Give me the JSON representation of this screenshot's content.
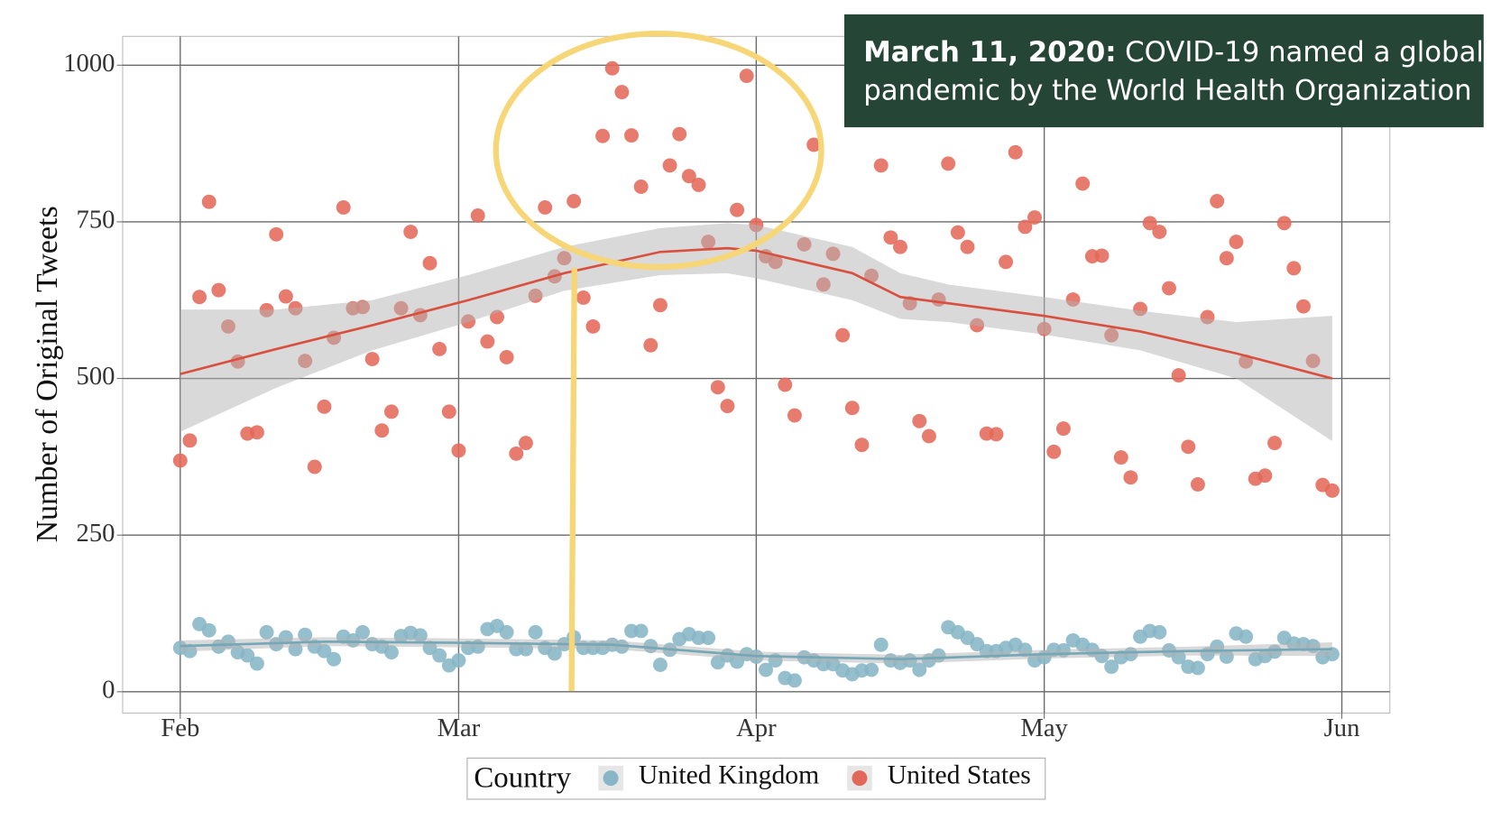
{
  "chart_data": {
    "type": "scatter",
    "y_label": "Number of Original Tweets",
    "legend_title": "Country",
    "legend_position": "bottom",
    "annotation": {
      "date": "March 11, 2020:",
      "lines": [
        "COVID-19 named a global",
        "pandemic by the World Health Organization"
      ]
    },
    "xlim": [
      -6,
      126
    ],
    "ylim": [
      -34,
      1046
    ],
    "xticks": [
      {
        "value": 0,
        "label": "Feb"
      },
      {
        "value": 29,
        "label": "Mar"
      },
      {
        "value": 60,
        "label": "Apr"
      },
      {
        "value": 90,
        "label": "May"
      },
      {
        "value": 121,
        "label": "Jun"
      }
    ],
    "yticks": [
      0,
      250,
      500,
      750,
      1000
    ],
    "grid": true,
    "x": [
      0,
      1,
      2,
      3,
      4,
      5,
      6,
      7,
      8,
      9,
      10,
      11,
      12,
      13,
      14,
      15,
      16,
      17,
      18,
      19,
      20,
      21,
      22,
      23,
      24,
      25,
      26,
      27,
      28,
      29,
      30,
      31,
      32,
      33,
      34,
      35,
      36,
      37,
      38,
      39,
      40,
      41,
      42,
      43,
      44,
      45,
      46,
      47,
      48,
      49,
      50,
      51,
      52,
      53,
      54,
      55,
      56,
      57,
      58,
      59,
      60,
      61,
      62,
      63,
      64,
      65,
      66,
      67,
      68,
      69,
      70,
      71,
      72,
      73,
      74,
      75,
      76,
      77,
      78,
      79,
      80,
      81,
      82,
      83,
      84,
      85,
      86,
      87,
      88,
      89,
      90,
      91,
      92,
      93,
      94,
      95,
      96,
      97,
      98,
      99,
      100,
      101,
      102,
      103,
      104,
      105,
      106,
      107,
      108,
      109,
      110,
      111,
      112,
      113,
      114,
      115,
      116,
      117,
      118,
      119,
      120
    ],
    "series": [
      {
        "name": "United Kingdom",
        "color": "#88b6c6",
        "line_color": "#74a8b8",
        "values": [
          70,
          65,
          108,
          98,
          72,
          80,
          63,
          58,
          45,
          95,
          76,
          87,
          68,
          91,
          72,
          65,
          52,
          88,
          82,
          95,
          76,
          72,
          63,
          89,
          94,
          90,
          70,
          58,
          42,
          50,
          70,
          72,
          100,
          105,
          95,
          68,
          68,
          95,
          70,
          61,
          76,
          87,
          70,
          70,
          70,
          75,
          72,
          97,
          97,
          73,
          43,
          67,
          84,
          92,
          86,
          86,
          47,
          58,
          48,
          60,
          56,
          35,
          50,
          22,
          18,
          55,
          50,
          44,
          44,
          34,
          28,
          34,
          35,
          75,
          50,
          46,
          50,
          35,
          50,
          58,
          103,
          95,
          86,
          76,
          65,
          65,
          70,
          75,
          67,
          50,
          55,
          67,
          66,
          82,
          75,
          67,
          57,
          40,
          55,
          60,
          88,
          97,
          95,
          66,
          55,
          40,
          38,
          60,
          72,
          56,
          93,
          88,
          52,
          57,
          64,
          86,
          77,
          76,
          73,
          55,
          60
        ],
        "trend": {
          "x": [
            0,
            15,
            30,
            45,
            60,
            75,
            90,
            105,
            120
          ],
          "values": [
            73,
            80,
            78,
            75,
            57,
            52,
            60,
            65,
            68
          ],
          "lower": [
            64,
            73,
            71,
            68,
            50,
            45,
            53,
            58,
            57
          ],
          "upper": [
            82,
            87,
            85,
            82,
            64,
            59,
            67,
            72,
            79
          ]
        }
      },
      {
        "name": "United States",
        "color": "#e2695a",
        "line_color": "#d9503f",
        "values": [
          369,
          401,
          630,
          782,
          641,
          583,
          527,
          412,
          414,
          609,
          730,
          631,
          612,
          528,
          359,
          455,
          565,
          773,
          612,
          614,
          531,
          417,
          447,
          612,
          734,
          601,
          684,
          547,
          447,
          385,
          591,
          760,
          559,
          598,
          534,
          380,
          397,
          632,
          773,
          663,
          692,
          783,
          629,
          583,
          887,
          995,
          957,
          888,
          806,
          553,
          617,
          840,
          890,
          823,
          809,
          718,
          486,
          456,
          769,
          983,
          745,
          695,
          686,
          490,
          441,
          714,
          873,
          650,
          699,
          569,
          453,
          394,
          664,
          840,
          725,
          710,
          620,
          432,
          408,
          626,
          843,
          733,
          710,
          585,
          412,
          411,
          686,
          861,
          742,
          757,
          579,
          383,
          420,
          626,
          811,
          695,
          696,
          569,
          374,
          342,
          611,
          748,
          734,
          644,
          505,
          391,
          331,
          598,
          783,
          692,
          718,
          527,
          340,
          345,
          397,
          748,
          676,
          615,
          528,
          330,
          321
        ],
        "trend": {
          "x": [
            0,
            10,
            20,
            30,
            40,
            50,
            57,
            60,
            70,
            75,
            80,
            90,
            100,
            110,
            120
          ],
          "values": [
            507,
            547,
            585,
            625,
            668,
            702,
            708,
            704,
            668,
            630,
            620,
            600,
            575,
            540,
            500
          ],
          "lower": [
            415,
            485,
            545,
            590,
            640,
            665,
            668,
            660,
            625,
            595,
            590,
            570,
            545,
            500,
            400
          ],
          "upper": [
            610,
            610,
            625,
            665,
            710,
            740,
            748,
            745,
            710,
            668,
            650,
            630,
            608,
            590,
            600
          ]
        }
      }
    ]
  }
}
